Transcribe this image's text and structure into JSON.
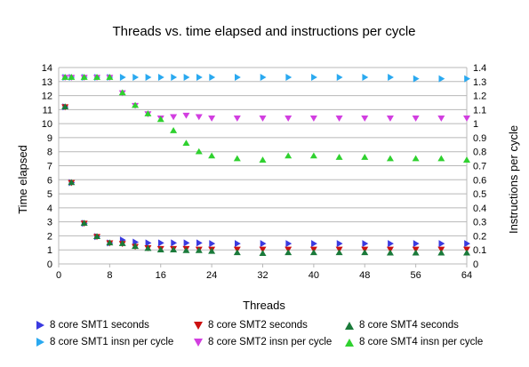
{
  "chart_data": {
    "type": "scatter",
    "title": "Threads vs. time elapsed and instructions per cycle",
    "xlabel": "Threads",
    "ylabel": "Time elapsed",
    "y2label": "Instructions per cycle",
    "xlim": [
      0,
      64
    ],
    "ylim": [
      0,
      14
    ],
    "y2lim": [
      0,
      1.4
    ],
    "xticks": [
      0,
      8,
      16,
      24,
      32,
      40,
      48,
      56,
      64
    ],
    "yticks": [
      0,
      1,
      2,
      3,
      4,
      5,
      6,
      7,
      8,
      9,
      10,
      11,
      12,
      13,
      14
    ],
    "y2ticks": [
      "0",
      "0.1",
      "0.2",
      "0.3",
      "0.4",
      "0.5",
      "0.6",
      "0.7",
      "0.8",
      "0.9",
      "1",
      "1.1",
      "1.2",
      "1.3",
      "1.4"
    ],
    "grid": "horizontal",
    "legend_position": "bottom",
    "series": [
      {
        "name": "8 core SMT1 seconds",
        "axis": "left",
        "marker": "triangle-right",
        "color": "#3a3ae0",
        "x": [
          1,
          2,
          4,
          6,
          8,
          10,
          12,
          14,
          16,
          18,
          20,
          22,
          24,
          28,
          32,
          36,
          40,
          44,
          48,
          52,
          56,
          60,
          64
        ],
        "y": [
          11.2,
          5.8,
          2.9,
          1.95,
          1.5,
          1.7,
          1.55,
          1.5,
          1.5,
          1.5,
          1.5,
          1.5,
          1.45,
          1.45,
          1.45,
          1.45,
          1.45,
          1.45,
          1.45,
          1.45,
          1.45,
          1.45,
          1.45
        ]
      },
      {
        "name": "8 core SMT2 seconds",
        "axis": "left",
        "marker": "triangle-down",
        "color": "#cc1010",
        "x": [
          1,
          2,
          4,
          6,
          8,
          10,
          12,
          14,
          16,
          18,
          20,
          22,
          24,
          28,
          32,
          36,
          40,
          44,
          48,
          52,
          56,
          60,
          64
        ],
        "y": [
          11.2,
          5.8,
          2.9,
          1.95,
          1.5,
          1.45,
          1.25,
          1.15,
          1.1,
          1.1,
          1.1,
          1.05,
          1.05,
          1.05,
          1.05,
          1.05,
          1.05,
          1.05,
          1.05,
          1.05,
          1.05,
          1.05,
          1.05
        ]
      },
      {
        "name": "8 core SMT4 seconds",
        "axis": "left",
        "marker": "triangle-up",
        "color": "#1a7a3a",
        "x": [
          1,
          2,
          4,
          6,
          8,
          10,
          12,
          14,
          16,
          18,
          20,
          22,
          24,
          28,
          32,
          36,
          40,
          44,
          48,
          52,
          56,
          60,
          64
        ],
        "y": [
          11.2,
          5.8,
          2.9,
          1.95,
          1.5,
          1.45,
          1.25,
          1.1,
          1.0,
          1.0,
          0.95,
          0.95,
          0.9,
          0.8,
          0.75,
          0.8,
          0.8,
          0.8,
          0.8,
          0.78,
          0.78,
          0.78,
          0.78
        ]
      },
      {
        "name": "8 core SMT1 insn per cycle",
        "axis": "right",
        "marker": "triangle-right",
        "color": "#2aa9f0",
        "x": [
          1,
          2,
          4,
          6,
          8,
          10,
          12,
          14,
          16,
          18,
          20,
          22,
          24,
          28,
          32,
          36,
          40,
          44,
          48,
          52,
          56,
          60,
          64
        ],
        "y": [
          1.33,
          1.33,
          1.33,
          1.33,
          1.33,
          1.33,
          1.33,
          1.33,
          1.33,
          1.33,
          1.33,
          1.33,
          1.33,
          1.33,
          1.33,
          1.33,
          1.33,
          1.33,
          1.33,
          1.33,
          1.32,
          1.32,
          1.32
        ]
      },
      {
        "name": "8 core SMT2 insn per cycle",
        "axis": "right",
        "marker": "triangle-down",
        "color": "#d23ee0",
        "x": [
          1,
          2,
          4,
          6,
          8,
          10,
          12,
          14,
          16,
          18,
          20,
          22,
          24,
          28,
          32,
          36,
          40,
          44,
          48,
          52,
          56,
          60,
          64
        ],
        "y": [
          1.33,
          1.33,
          1.33,
          1.33,
          1.33,
          1.22,
          1.13,
          1.07,
          1.04,
          1.05,
          1.06,
          1.05,
          1.04,
          1.04,
          1.04,
          1.04,
          1.04,
          1.04,
          1.04,
          1.04,
          1.04,
          1.04,
          1.04
        ]
      },
      {
        "name": "8 core SMT4 insn per cycle",
        "axis": "right",
        "marker": "triangle-up",
        "color": "#2fd12f",
        "x": [
          1,
          2,
          4,
          6,
          8,
          10,
          12,
          14,
          16,
          18,
          20,
          22,
          24,
          28,
          32,
          36,
          40,
          44,
          48,
          52,
          56,
          60,
          64
        ],
        "y": [
          1.33,
          1.33,
          1.33,
          1.33,
          1.33,
          1.22,
          1.13,
          1.07,
          1.03,
          0.95,
          0.86,
          0.8,
          0.77,
          0.75,
          0.74,
          0.77,
          0.77,
          0.76,
          0.76,
          0.75,
          0.75,
          0.75,
          0.74
        ]
      }
    ]
  }
}
